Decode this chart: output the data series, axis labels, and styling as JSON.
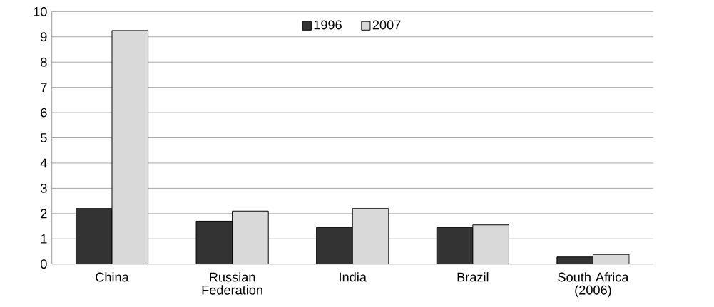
{
  "chart_data": {
    "type": "bar",
    "categories": [
      "China",
      "Russian Federation",
      "India",
      "Brazil",
      "South Africa (2006)"
    ],
    "series": [
      {
        "name": "1996",
        "color": "#333333",
        "values": [
          2.2,
          1.7,
          1.45,
          1.45,
          0.28
        ]
      },
      {
        "name": "2007",
        "color": "#d9d9d9",
        "values": [
          9.25,
          2.1,
          2.2,
          1.55,
          0.38
        ]
      }
    ],
    "ylim": [
      0,
      10
    ],
    "yticks": [
      0,
      1,
      2,
      3,
      4,
      5,
      6,
      7,
      8,
      9,
      10
    ],
    "grid": "y",
    "legend": "top"
  }
}
